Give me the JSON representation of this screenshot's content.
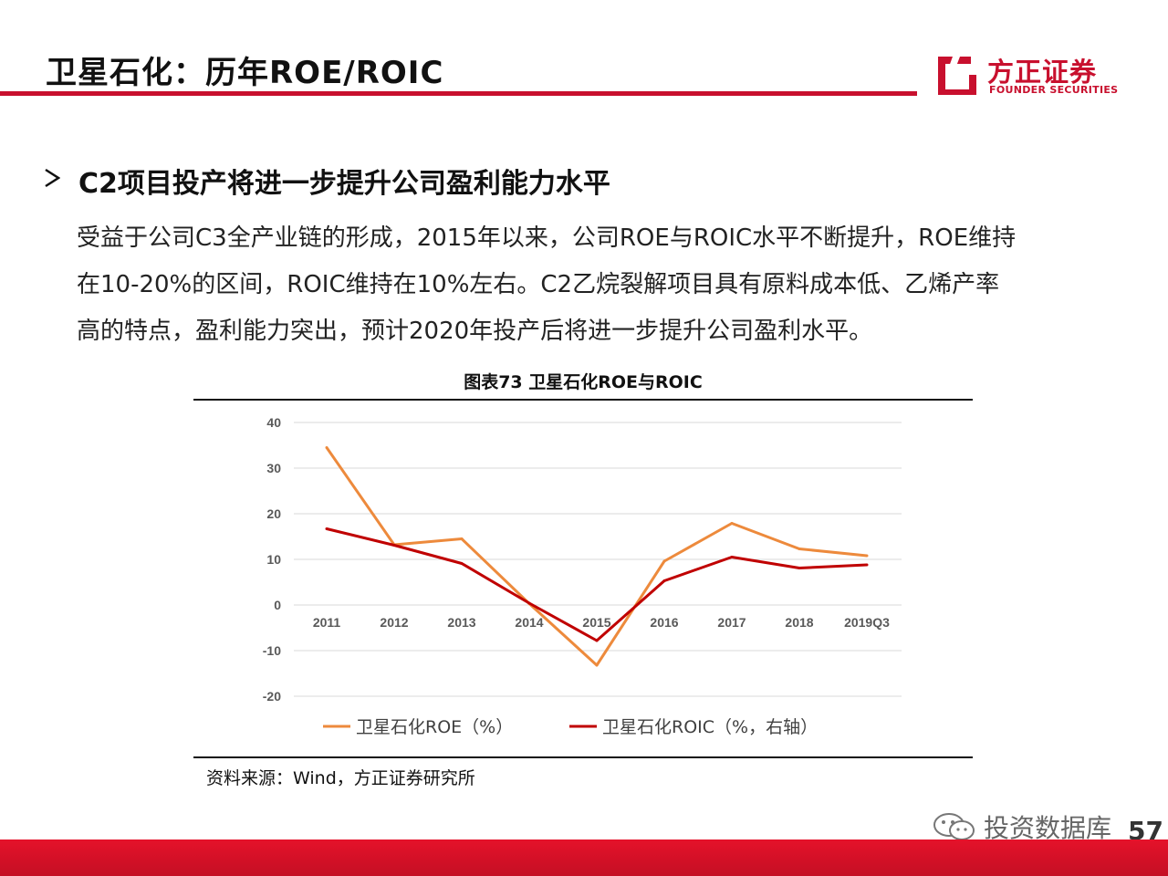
{
  "header": {
    "title": "卫星石化：历年ROE/ROIC",
    "brand_color": "#c8102e",
    "logo_cn": "方正证券",
    "logo_en": "FOUNDER SECURITIES"
  },
  "section": {
    "bullet_icon": "arrow-right-icon",
    "heading": "C2项目投产将进一步提升公司盈利能力水平",
    "paragraph_lines": [
      "受益于公司C3全产业链的形成，2015年以来，公司ROE与ROIC水平不断提升，ROE维持",
      "在10-20%的区间，ROIC维持在10%左右。C2乙烷裂解项目具有原料成本低、乙烯产率",
      "高的特点，盈利能力突出，预计2020年投产后将进一步提升公司盈利水平。"
    ]
  },
  "figure": {
    "title": "图表73 卫星石化ROE与ROIC",
    "source": "资料来源：Wind，方正证券研究所"
  },
  "chart_data": {
    "type": "line",
    "categories": [
      "2011",
      "2012",
      "2013",
      "2014",
      "2015",
      "2016",
      "2017",
      "2018",
      "2019Q3"
    ],
    "series": [
      {
        "name": "卫星石化ROE（%）",
        "color": "#ed8a3c",
        "values": [
          34.5,
          13.2,
          14.5,
          0.3,
          -13.2,
          9.6,
          17.9,
          12.3,
          10.8
        ]
      },
      {
        "name": "卫星石化ROIC（%，右轴）",
        "color": "#c00000",
        "values": [
          16.7,
          13.1,
          9.1,
          0.4,
          -7.8,
          5.3,
          10.5,
          8.1,
          8.8
        ]
      }
    ],
    "y_ticks": [
      "40",
      "30",
      "20",
      "10",
      "0",
      "-10",
      "-20"
    ],
    "ylim": [
      -20,
      40
    ],
    "grid": true,
    "legend": "bottom"
  },
  "footer": {
    "watermark": "投资数据库",
    "watermark_icon": "wechat-icon",
    "page_number": "57"
  }
}
